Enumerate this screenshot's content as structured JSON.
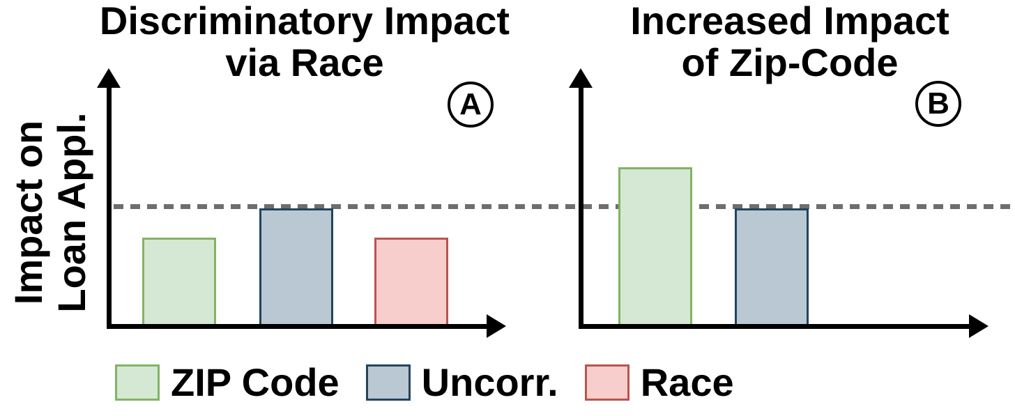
{
  "figure": {
    "ylabel": {
      "line1": "Impact on",
      "line2": "Loan Appl."
    },
    "legend": [
      {
        "key": "zip",
        "label": "ZIP Code"
      },
      {
        "key": "uncorr",
        "label": "Uncorr."
      },
      {
        "key": "race",
        "label": "Race"
      }
    ],
    "colors": {
      "zip": {
        "fill": "#d5e8d4",
        "stroke": "#82b366"
      },
      "uncorr": {
        "fill": "#bac8d3",
        "stroke": "#23445d"
      },
      "race": {
        "fill": "#f8cecc",
        "stroke": "#b85450"
      },
      "dashed_line": "#6e6e6e",
      "axis": "#000000"
    }
  },
  "chart_data": [
    {
      "type": "bar",
      "panel": "A",
      "badge": "A",
      "title": [
        "Discriminatory Impact",
        "via Race"
      ],
      "ylabel": "Impact on Loan Appl.",
      "categories": [
        "ZIP Code",
        "Uncorr.",
        "Race"
      ],
      "series_keys": [
        "zip",
        "uncorr",
        "race"
      ],
      "values": [
        0.75,
        1.0,
        0.75
      ],
      "reference_line": {
        "value": 1.0,
        "style": "dashed"
      },
      "axes": {
        "ticks": false,
        "arrows": true,
        "grid": false
      }
    },
    {
      "type": "bar",
      "panel": "B",
      "badge": "B",
      "title": [
        "Increased Impact",
        "of Zip-Code"
      ],
      "ylabel": "Impact on Loan Appl.",
      "categories": [
        "ZIP Code",
        "Uncorr."
      ],
      "series_keys": [
        "zip",
        "uncorr"
      ],
      "values": [
        1.35,
        1.0
      ],
      "reference_line": {
        "value": 1.0,
        "style": "dashed"
      },
      "axes": {
        "ticks": false,
        "arrows": true,
        "grid": false
      }
    }
  ]
}
